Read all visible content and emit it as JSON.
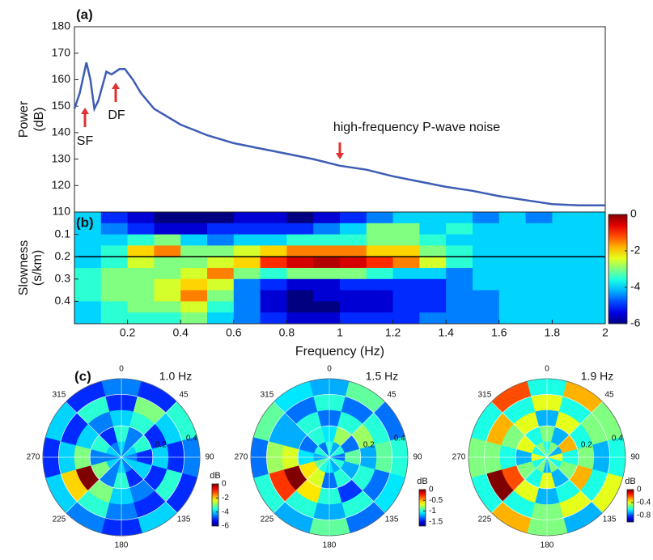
{
  "chart_data": [
    {
      "type": "line",
      "label": "(a)",
      "ylabel": [
        "Power",
        "(dB)"
      ],
      "x": [
        0,
        0.02,
        0.045,
        0.06,
        0.075,
        0.09,
        0.12,
        0.14,
        0.17,
        0.19,
        0.22,
        0.25,
        0.3,
        0.4,
        0.5,
        0.6,
        0.7,
        0.8,
        0.9,
        1.0,
        1.1,
        1.2,
        1.3,
        1.4,
        1.5,
        1.6,
        1.7,
        1.8,
        1.9,
        2.0
      ],
      "values": [
        149,
        155,
        166.5,
        160,
        149,
        152,
        163,
        162,
        164,
        164,
        160,
        155,
        149,
        143,
        139,
        136,
        134,
        132,
        130,
        127.5,
        126,
        123.5,
        121.5,
        119.5,
        118,
        116,
        114.5,
        113,
        112.5,
        112.5
      ],
      "color": "#3d5cb4",
      "xlim": [
        0,
        2
      ],
      "ylim": [
        110,
        180
      ],
      "yticks": [
        110,
        120,
        130,
        140,
        150,
        160,
        170,
        180
      ],
      "annotations": [
        "SF",
        "DF",
        "high-frequency P-wave noise"
      ],
      "annotation_color": "#e03030"
    },
    {
      "type": "heatmap",
      "label": "(b)",
      "xlabel": "Frequency (Hz)",
      "ylabel": [
        "Slowness",
        "(s/km)"
      ],
      "xlim": [
        0,
        2
      ],
      "xticks": [
        0.2,
        0.4,
        0.6,
        0.8,
        1,
        1.2,
        1.4,
        1.6,
        1.8,
        2
      ],
      "ylim": [
        0,
        0.5
      ],
      "yticks": [
        0.1,
        0.2,
        0.3,
        0.4
      ],
      "y_inverted": true,
      "clim": [
        -6,
        0
      ],
      "cticks": [
        0,
        -2,
        -4,
        -6
      ],
      "hline": 0.2,
      "hline_color": "#000000",
      "z": [
        [
          -4,
          -5,
          -5.5,
          -6,
          -6,
          -6,
          -5.5,
          -5.5,
          -6,
          -5.5,
          -5,
          -4.5,
          -4,
          -4,
          -4,
          -4.5,
          -4,
          -4.5,
          -4,
          -4
        ],
        [
          -4,
          -4.5,
          -5,
          -5.5,
          -5.5,
          -5,
          -5,
          -5,
          -5,
          -4.5,
          -4,
          -3,
          -3,
          -4,
          -3.5,
          -4,
          -4,
          -4,
          -4,
          -4
        ],
        [
          -4,
          -4,
          -3.5,
          -3,
          -4,
          -4.5,
          -4,
          -4,
          -3.5,
          -3.5,
          -3.5,
          -3,
          -3,
          -3.5,
          -4,
          -4,
          -4,
          -4,
          -4,
          -4
        ],
        [
          -4,
          -3.5,
          -2,
          -1.5,
          -3,
          -3,
          -2.5,
          -2,
          -1.5,
          -1.5,
          -1.5,
          -2,
          -2,
          -3,
          -3.5,
          -4,
          -4,
          -4,
          -4,
          -4
        ],
        [
          -4,
          -3.5,
          -2.5,
          -3,
          -3,
          -2.5,
          -2,
          -1,
          -0.5,
          -0.3,
          -0.5,
          -1,
          -1.5,
          -2.5,
          -3.5,
          -4,
          -4,
          -4,
          -4,
          -4
        ],
        [
          -3.5,
          -3,
          -3,
          -3,
          -2.5,
          -1.5,
          -3,
          -3.5,
          -3,
          -3,
          -3,
          -3.5,
          -4,
          -4,
          -4.5,
          -4,
          -4,
          -4,
          -4,
          -4
        ],
        [
          -3.5,
          -3,
          -3,
          -2.5,
          -2,
          -2.5,
          -4.5,
          -5,
          -5.5,
          -5.5,
          -5,
          -5,
          -5,
          -5,
          -4.5,
          -4,
          -4,
          -4,
          -4,
          -4
        ],
        [
          -3.5,
          -3,
          -3,
          -2.5,
          -1.5,
          -3,
          -4.5,
          -5.5,
          -6,
          -5.5,
          -5.5,
          -5.5,
          -5,
          -5,
          -4.5,
          -4.5,
          -4,
          -4,
          -4,
          -4
        ],
        [
          -4,
          -3.5,
          -3,
          -3,
          -2.5,
          -3.5,
          -4.5,
          -5.5,
          -6,
          -6,
          -5.5,
          -5.5,
          -5,
          -5,
          -4.5,
          -4.5,
          -4,
          -4,
          -4,
          -4
        ],
        [
          -4,
          -3.5,
          -3.5,
          -3.5,
          -3,
          -4,
          -4.5,
          -5,
          -5.5,
          -5.5,
          -5,
          -5,
          -5,
          -4.5,
          -4.5,
          -4.5,
          -4,
          -4,
          -4,
          -4
        ]
      ]
    },
    {
      "type": "polar-heatmap",
      "label": "(c)",
      "title": "1.0 Hz",
      "rlim": [
        0,
        0.5
      ],
      "rticks": [
        0.2,
        0.4
      ],
      "thetaticks": [
        0,
        45,
        90,
        135,
        180,
        225,
        270,
        315
      ],
      "clim": [
        -6,
        0
      ],
      "cticks": [
        0,
        -2,
        -4,
        -6
      ],
      "clabel": "dB",
      "z": [
        [
          -4,
          -4.5,
          -4,
          -4.5,
          -4,
          -4.5,
          -4,
          -4.5,
          -4,
          -4.5,
          -4,
          -4.5
        ],
        [
          -3.5,
          -4.5,
          -3.5,
          -5,
          -4,
          -5,
          -3.5,
          -4.5,
          -3,
          -4.5,
          -3.5,
          -5
        ],
        [
          -4,
          -3.5,
          -5,
          -4,
          -5,
          -4.5,
          -4,
          -3,
          0,
          -3,
          -4,
          -4.5
        ],
        [
          -5,
          -3,
          -4,
          -5,
          -3.5,
          -5,
          -4.5,
          -3.5,
          -2,
          -4,
          -5,
          -3.5
        ],
        [
          -4.5,
          -5,
          -3.5,
          -4.5,
          -5,
          -4,
          -5,
          -4.5,
          -4,
          -5,
          -4,
          -5
        ]
      ]
    },
    {
      "type": "polar-heatmap",
      "title": "1.5 Hz",
      "rlim": [
        0,
        0.5
      ],
      "rticks": [
        0.2,
        0.4
      ],
      "thetaticks": [
        0,
        45,
        90,
        135,
        180,
        225,
        270,
        315
      ],
      "clim": [
        -1.7,
        0
      ],
      "cticks": [
        0,
        -0.5,
        -1,
        -1.5
      ],
      "clabel": "dB",
      "z": [
        [
          -1,
          -1.2,
          -1,
          -1.3,
          -1,
          -1.2,
          -1.1,
          -1,
          -0.9,
          -1.2,
          -1,
          -1.3
        ],
        [
          -1.1,
          -0.8,
          -1.3,
          -0.9,
          -1.2,
          -1,
          -1.3,
          -0.7,
          -0.6,
          -1.1,
          -1.3,
          -1
        ],
        [
          -1.3,
          -1,
          -0.8,
          -1.2,
          -1,
          -1.4,
          -1,
          -0.6,
          0,
          -0.7,
          -1.2,
          -1
        ],
        [
          -1,
          -1.3,
          -1,
          -0.9,
          -1.3,
          -1,
          -1.2,
          -1,
          -0.3,
          -0.8,
          -1.2,
          -1.3
        ],
        [
          -1.2,
          -0.9,
          -1.3,
          -1,
          -1.1,
          -1.3,
          -0.9,
          -1.2,
          -1,
          -1.3,
          -0.9,
          -1.1
        ]
      ]
    },
    {
      "type": "polar-heatmap",
      "title": "1.9 Hz",
      "rlim": [
        0,
        0.5
      ],
      "rticks": [
        0.2,
        0.4
      ],
      "thetaticks": [
        0,
        45,
        90,
        135,
        180,
        225,
        270,
        315
      ],
      "clim": [
        -1,
        0
      ],
      "cticks": [
        0,
        -0.4,
        -0.8
      ],
      "clabel": "dB",
      "z": [
        [
          -0.6,
          -0.5,
          -0.7,
          -0.4,
          -0.6,
          -0.5,
          -0.7,
          -0.5,
          -0.6,
          -0.4,
          -0.6,
          -0.5
        ],
        [
          -0.5,
          -0.7,
          -0.3,
          -0.6,
          -0.5,
          -0.7,
          -0.4,
          -0.6,
          -0.5,
          -0.7,
          -0.4,
          -0.6
        ],
        [
          -0.7,
          -0.4,
          -0.6,
          -0.5,
          -0.3,
          -0.6,
          -0.7,
          -0.4,
          -0.2,
          -0.6,
          -0.5,
          -0.4
        ],
        [
          -0.4,
          -0.6,
          -0.5,
          -0.7,
          -0.6,
          -0.4,
          -0.5,
          -0.6,
          0,
          -0.5,
          -0.3,
          -0.6
        ],
        [
          -0.6,
          -0.3,
          -0.5,
          -0.6,
          -0.4,
          -0.7,
          -0.5,
          -0.3,
          -0.6,
          -0.5,
          -0.6,
          -0.2
        ]
      ]
    }
  ]
}
